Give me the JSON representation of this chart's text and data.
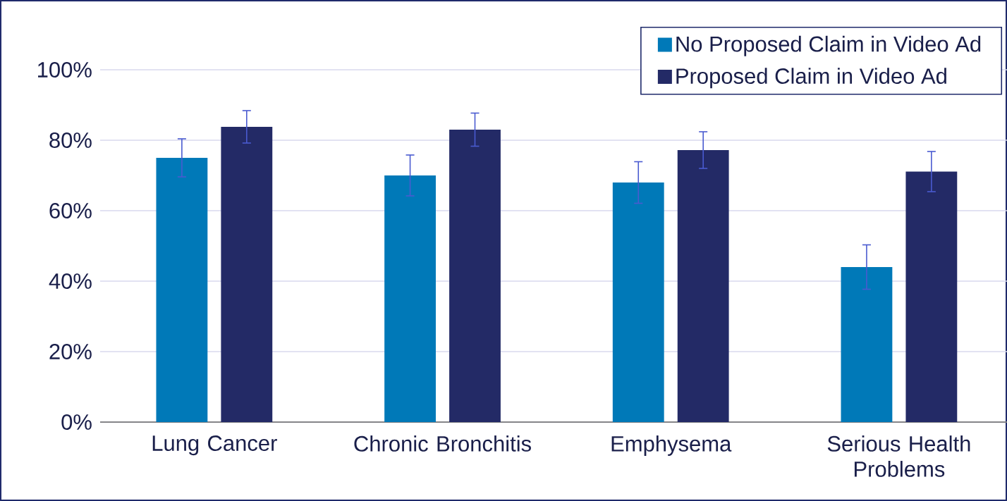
{
  "chart_data": {
    "type": "bar",
    "categories": [
      "Lung Cancer",
      "Chronic Bronchitis",
      "Emphysema",
      "Serious Health Problems"
    ],
    "series": [
      {
        "name": "No Proposed Claim in Video Ad",
        "color": "#0079b8",
        "values": [
          75,
          70,
          68,
          44
        ],
        "errors": [
          5.4,
          5.8,
          5.9,
          6.3
        ]
      },
      {
        "name": "Proposed Claim in Video Ad",
        "color": "#232a66",
        "values": [
          83.8,
          83,
          77.2,
          71.1
        ],
        "errors": [
          4.6,
          4.7,
          5.2,
          5.7
        ]
      }
    ],
    "ylim": [
      0,
      100
    ],
    "yticks": [
      {
        "value": 0,
        "label": "0%"
      },
      {
        "value": 20,
        "label": "20%"
      },
      {
        "value": 40,
        "label": "40%"
      },
      {
        "value": 60,
        "label": "60%"
      },
      {
        "value": 80,
        "label": "80%"
      },
      {
        "value": 100,
        "label": "100%"
      }
    ],
    "grid": "y",
    "legend": "top right"
  }
}
